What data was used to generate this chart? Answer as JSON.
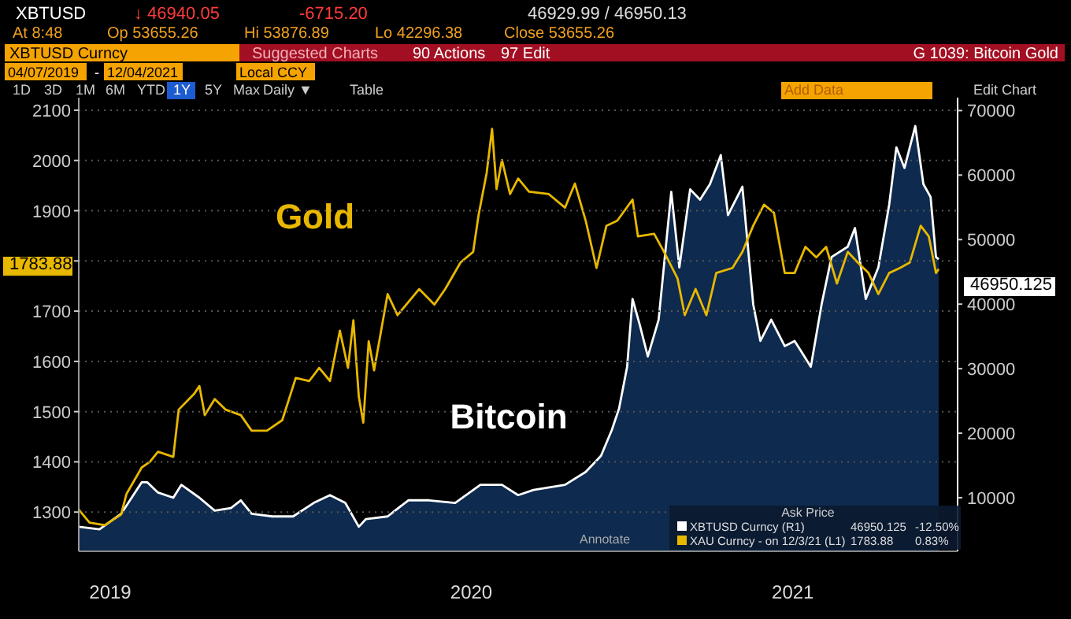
{
  "chart_data": {
    "type": "line",
    "xlim": [
      "2019-04-07",
      "2021-12-08"
    ],
    "xticks": [
      {
        "value": "2019-05-12",
        "label": "2019"
      },
      {
        "value": "2020-06-16",
        "label": "2020"
      },
      {
        "value": "2021-06-08",
        "label": "2021"
      }
    ],
    "ylim": [
      1222,
      2125
    ],
    "yticks": [
      1300,
      1400,
      1500,
      1600,
      1700,
      {
        "value": 1800,
        "label": null
      },
      1900,
      2000,
      2100
    ],
    "y2lim": [
      1700,
      72000
    ],
    "y2ticks": [
      10000,
      20000,
      30000,
      40000,
      50000,
      60000,
      70000
    ],
    "grid": "y",
    "line_style": "solid",
    "series": [
      {
        "name": "Bitcoin",
        "type": "area",
        "axis": "y2",
        "color": "#ffffff",
        "x": [
          "2019-04-07",
          "2019-04-30",
          "2019-05-24",
          "2019-06-16",
          "2019-06-22",
          "2019-07-04",
          "2019-07-21",
          "2019-07-30",
          "2019-08-19",
          "2019-09-05",
          "2019-09-23",
          "2019-10-04",
          "2019-10-16",
          "2019-11-08",
          "2019-12-01",
          "2019-12-24",
          "2020-01-11",
          "2020-01-28",
          "2020-02-12",
          "2020-02-20",
          "2020-03-15",
          "2020-04-07",
          "2020-04-30",
          "2020-05-29",
          "2020-06-26",
          "2020-07-20",
          "2020-08-07",
          "2020-08-24",
          "2020-09-28",
          "2020-10-21",
          "2020-11-07",
          "2020-11-19",
          "2020-11-27",
          "2020-12-06",
          "2020-12-12",
          "2020-12-20",
          "2020-12-29",
          "2021-01-10",
          "2021-01-24",
          "2021-02-02",
          "2021-02-14",
          "2021-02-25",
          "2021-03-08",
          "2021-03-20",
          "2021-03-28",
          "2021-04-13",
          "2021-04-25",
          "2021-05-03",
          "2021-05-15",
          "2021-05-30",
          "2021-06-10",
          "2021-06-28",
          "2021-07-10",
          "2021-07-21",
          "2021-08-08",
          "2021-08-16",
          "2021-08-28",
          "2021-09-11",
          "2021-09-23",
          "2021-10-01",
          "2021-10-10",
          "2021-10-22",
          "2021-10-31",
          "2021-11-08",
          "2021-11-14",
          "2021-11-17"
        ],
        "values": [
          5500,
          5100,
          7500,
          12400,
          12400,
          10800,
          10000,
          12000,
          10000,
          8000,
          8400,
          9600,
          7500,
          7100,
          7100,
          9200,
          10400,
          9200,
          5500,
          6700,
          7100,
          9600,
          9600,
          9200,
          12000,
          12000,
          10400,
          11200,
          12000,
          14000,
          16500,
          20500,
          23800,
          30300,
          40800,
          36800,
          31900,
          37600,
          57400,
          45700,
          57800,
          56200,
          58600,
          63100,
          53800,
          58200,
          40000,
          34300,
          37600,
          33500,
          34300,
          30300,
          40000,
          47300,
          48900,
          51800,
          40800,
          45700,
          55400,
          64300,
          61100,
          67600,
          58600,
          56600,
          47300,
          46950
        ]
      },
      {
        "name": "Gold",
        "axis": "y",
        "color": "#e8b800",
        "x": [
          "2019-04-07",
          "2019-04-19",
          "2019-05-06",
          "2019-05-24",
          "2019-05-30",
          "2019-06-16",
          "2019-06-25",
          "2019-07-04",
          "2019-07-21",
          "2019-07-27",
          "2019-08-13",
          "2019-08-19",
          "2019-08-25",
          "2019-09-05",
          "2019-09-17",
          "2019-10-04",
          "2019-10-16",
          "2019-11-02",
          "2019-11-19",
          "2019-12-04",
          "2019-12-19",
          "2019-12-30",
          "2020-01-11",
          "2020-01-22",
          "2020-01-31",
          "2020-02-06",
          "2020-02-12",
          "2020-02-17",
          "2020-02-23",
          "2020-02-29",
          "2020-03-15",
          "2020-03-26",
          "2020-04-19",
          "2020-05-06",
          "2020-05-18",
          "2020-06-04",
          "2020-06-18",
          "2020-06-24",
          "2020-07-03",
          "2020-07-09",
          "2020-07-14",
          "2020-07-20",
          "2020-07-29",
          "2020-08-07",
          "2020-08-19",
          "2020-09-10",
          "2020-09-28",
          "2020-10-09",
          "2020-10-21",
          "2020-11-02",
          "2020-11-13",
          "2020-11-25",
          "2020-12-12",
          "2020-12-18",
          "2021-01-05",
          "2021-01-16",
          "2021-01-31",
          "2021-02-08",
          "2021-02-20",
          "2021-03-04",
          "2021-03-15",
          "2021-04-02",
          "2021-04-13",
          "2021-04-25",
          "2021-05-07",
          "2021-05-18",
          "2021-05-30",
          "2021-06-10",
          "2021-06-22",
          "2021-07-04",
          "2021-07-15",
          "2021-07-27",
          "2021-08-08",
          "2021-08-19",
          "2021-08-31",
          "2021-09-11",
          "2021-09-23",
          "2021-10-05",
          "2021-10-16",
          "2021-10-28",
          "2021-11-06",
          "2021-11-14",
          "2021-11-17"
        ],
        "values": [
          1305,
          1279,
          1274,
          1295,
          1336,
          1389,
          1400,
          1420,
          1410,
          1504,
          1535,
          1551,
          1493,
          1525,
          1504,
          1493,
          1462,
          1462,
          1483,
          1567,
          1561,
          1587,
          1561,
          1661,
          1587,
          1682,
          1530,
          1478,
          1640,
          1582,
          1734,
          1692,
          1744,
          1713,
          1744,
          1797,
          1818,
          1891,
          1975,
          2063,
          1943,
          2001,
          1933,
          1964,
          1938,
          1933,
          1906,
          1954,
          1880,
          1786,
          1870,
          1880,
          1922,
          1849,
          1854,
          1818,
          1765,
          1692,
          1744,
          1692,
          1776,
          1786,
          1818,
          1870,
          1912,
          1896,
          1776,
          1776,
          1828,
          1807,
          1828,
          1755,
          1818,
          1797,
          1776,
          1734,
          1776,
          1786,
          1797,
          1870,
          1849,
          1776,
          1784
        ]
      }
    ],
    "annotations": [
      "XBTUSD",
      "↓ 46940.05",
      "-6715.20",
      "46929.99 / 46950.13",
      "At 8:48",
      "Op 53655.26",
      "Hi 53876.89",
      "Lo 42296.38",
      "Close 53655.26",
      "XBTUSD Curncy",
      "Suggested Charts",
      "90 Actions",
      "97 Edit",
      "G 1039: Bitcoin Gold",
      "04/07/2019",
      "-",
      "12/04/2021",
      "Local CCY",
      "1D",
      "3D",
      "1M",
      "6M",
      "YTD",
      "1Y",
      "5Y",
      "Max",
      "Daily ▼",
      "Table",
      "Add Data",
      "Edit Chart",
      "Annotate",
      "Ask Price",
      "XBTUSD Curncy (R1)",
      "46950.125",
      "-12.50%",
      "XAU Curncy - on 12/3/21 (L1)",
      "1783.88",
      "0.83%",
      "1783.88",
      "46950.125"
    ]
  }
}
